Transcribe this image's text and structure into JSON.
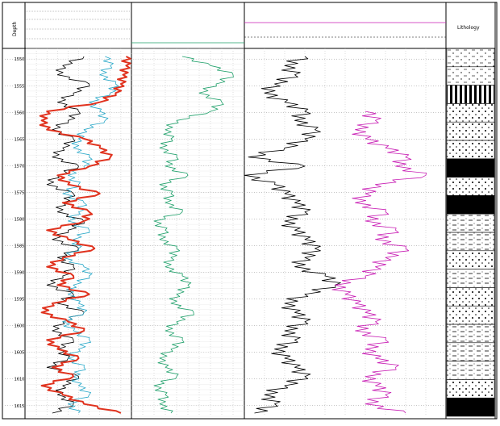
{
  "chart_data": {
    "type": "line",
    "title": "",
    "header_texts": {
      "track1_a": "Depth",
      "track1_b": "",
      "track2": "",
      "track3": "",
      "track4": "Lithology"
    },
    "depth_labels": [
      "1550",
      "1555",
      "1560",
      "1565",
      "1570",
      "1575",
      "1580",
      "1585",
      "1590",
      "1595",
      "1600",
      "1605",
      "1610",
      "1615"
    ],
    "series": [
      {
        "color": "#000000",
        "track": 1,
        "values": [
          0.55,
          0.35,
          0.3,
          0.6,
          0.45,
          0.3,
          0.5,
          0.4,
          0.25,
          0.45,
          0.35,
          0.25,
          0.5,
          0.3,
          0.2,
          0.45,
          0.35,
          0.3,
          0.55,
          0.4,
          0.25,
          0.5,
          0.3,
          0.45,
          0.35,
          0.2,
          0.45,
          0.3,
          0.55,
          0.35,
          0.25,
          0.45,
          0.3,
          0.4,
          0.2,
          0.5,
          0.35,
          0.3,
          0.45,
          0.25
        ]
      },
      {
        "color": "#29a8c8",
        "track": 1,
        "values": [
          0.75,
          0.8,
          0.7,
          0.85,
          0.8,
          0.6,
          0.7,
          0.75,
          0.55,
          0.5,
          0.45,
          0.6,
          0.55,
          0.4,
          0.5,
          0.35,
          0.55,
          0.5,
          0.4,
          0.6,
          0.45,
          0.5,
          0.35,
          0.55,
          0.6,
          0.45,
          0.4,
          0.5,
          0.55,
          0.35,
          0.45,
          0.6,
          0.5,
          0.4,
          0.55,
          0.45,
          0.5,
          0.6,
          0.4,
          0.5
        ]
      },
      {
        "color": "#e0321e",
        "track": 1,
        "values": [
          0.95,
          0.95,
          0.92,
          0.9,
          0.85,
          0.7,
          0.2,
          0.15,
          0.2,
          0.55,
          0.7,
          0.8,
          0.6,
          0.3,
          0.4,
          0.7,
          0.35,
          0.6,
          0.55,
          0.2,
          0.4,
          0.65,
          0.35,
          0.2,
          0.45,
          0.3,
          0.6,
          0.25,
          0.15,
          0.4,
          0.55,
          0.2,
          0.3,
          0.5,
          0.25,
          0.45,
          0.15,
          0.35,
          0.55,
          0.9
        ]
      },
      {
        "color": "#1fa06a",
        "track": 2,
        "values": [
          0.45,
          0.7,
          0.9,
          0.75,
          0.6,
          0.8,
          0.7,
          0.4,
          0.3,
          0.35,
          0.25,
          0.4,
          0.3,
          0.5,
          0.25,
          0.35,
          0.3,
          0.45,
          0.2,
          0.3,
          0.25,
          0.4,
          0.35,
          0.3,
          0.45,
          0.5,
          0.4,
          0.35,
          0.55,
          0.4,
          0.3,
          0.45,
          0.35,
          0.25,
          0.3,
          0.4,
          0.2,
          0.3,
          0.25,
          0.35
        ]
      },
      {
        "color": "#000000",
        "track": 3,
        "values": [
          0.3,
          0.2,
          0.25,
          0.15,
          0.1,
          0.2,
          0.3,
          0.25,
          0.35,
          0.3,
          0.2,
          0.02,
          0.3,
          0.0,
          0.15,
          0.2,
          0.25,
          0.3,
          0.2,
          0.25,
          0.3,
          0.35,
          0.3,
          0.25,
          0.4,
          0.45,
          0.3,
          0.2,
          0.25,
          0.3,
          0.2,
          0.25,
          0.15,
          0.2,
          0.25,
          0.3,
          0.2,
          0.1,
          0.15,
          0.05
        ]
      },
      {
        "color": "#c81eb4",
        "track": 3,
        "values": [
          null,
          null,
          null,
          null,
          null,
          null,
          0.6,
          0.65,
          0.55,
          0.6,
          0.7,
          0.8,
          0.75,
          0.9,
          0.65,
          0.6,
          0.55,
          0.7,
          0.6,
          0.75,
          0.65,
          0.8,
          0.7,
          0.65,
          0.6,
          0.45,
          0.5,
          0.55,
          0.6,
          0.65,
          0.55,
          0.7,
          0.6,
          0.65,
          0.75,
          0.6,
          0.65,
          0.7,
          0.6,
          0.8
        ]
      }
    ],
    "lithology": [
      "mixed",
      "mixed",
      "bar",
      "dots",
      "dots",
      "dots",
      "coal",
      "dots",
      "coal",
      "dashes",
      "dashes",
      "dots",
      "dashes",
      "dots",
      "dots",
      "dashes",
      "dashes",
      "dashes",
      "dots",
      "coal"
    ],
    "ylim": [
      1548,
      1617
    ],
    "grid": true
  }
}
